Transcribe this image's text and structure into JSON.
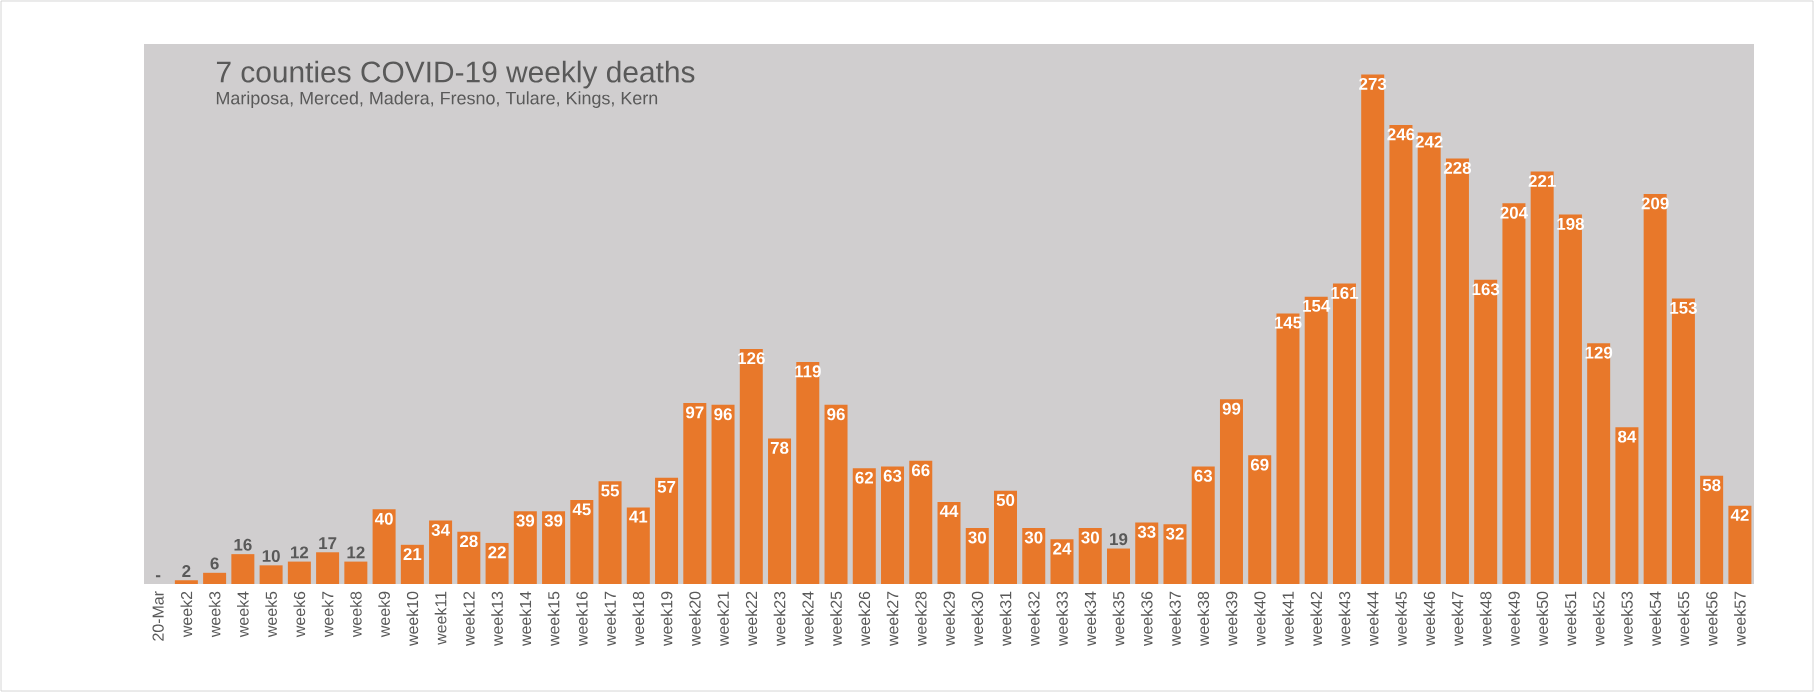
{
  "chart_data": {
    "type": "bar",
    "title": "7 counties COVID-19 weekly deaths",
    "subtitle": "Mariposa, Merced, Madera, Fresno, Tulare, Kings, Kern",
    "categories": [
      "20-Mar",
      "week2",
      "week3",
      "week4",
      "week5",
      "week6",
      "week7",
      "week8",
      "week9",
      "week10",
      "week11",
      "week12",
      "week13",
      "week14",
      "week15",
      "week16",
      "week17",
      "week18",
      "week19",
      "week20",
      "week21",
      "week22",
      "week23",
      "week24",
      "week25",
      "week26",
      "week27",
      "week28",
      "week29",
      "week30",
      "week31",
      "week32",
      "week33",
      "week34",
      "week35",
      "week36",
      "week37",
      "week38",
      "week39",
      "week40",
      "week41",
      "week42",
      "week43",
      "week44",
      "week45",
      "week46",
      "week47",
      "week48",
      "week49",
      "week50",
      "week51",
      "week52",
      "week53",
      "week54",
      "week55",
      "week56",
      "week57"
    ],
    "values": [
      0,
      2,
      6,
      16,
      10,
      12,
      17,
      12,
      40,
      21,
      34,
      28,
      22,
      39,
      39,
      45,
      55,
      41,
      57,
      97,
      96,
      126,
      78,
      119,
      96,
      62,
      63,
      66,
      44,
      30,
      50,
      30,
      24,
      30,
      19,
      33,
      32,
      63,
      99,
      69,
      145,
      154,
      161,
      273,
      246,
      242,
      228,
      163,
      204,
      221,
      198,
      129,
      84,
      209,
      153,
      58,
      42
    ],
    "value_labels": [
      "-",
      "2",
      "6",
      "16",
      "10",
      "12",
      "17",
      "12",
      "40",
      "21",
      "34",
      "28",
      "22",
      "39",
      "39",
      "45",
      "55",
      "41",
      "57",
      "97",
      "96",
      "126",
      "78",
      "119",
      "96",
      "62",
      "63",
      "66",
      "44",
      "30",
      "50",
      "30",
      "24",
      "30",
      "19",
      "33",
      "32",
      "63",
      "99",
      "69",
      "145",
      "154",
      "161",
      "273",
      "246",
      "242",
      "228",
      "163",
      "204",
      "221",
      "198",
      "129",
      "84",
      "209",
      "153",
      "58",
      "42"
    ],
    "color": "#e8782a",
    "tick_labels": "x"
  }
}
